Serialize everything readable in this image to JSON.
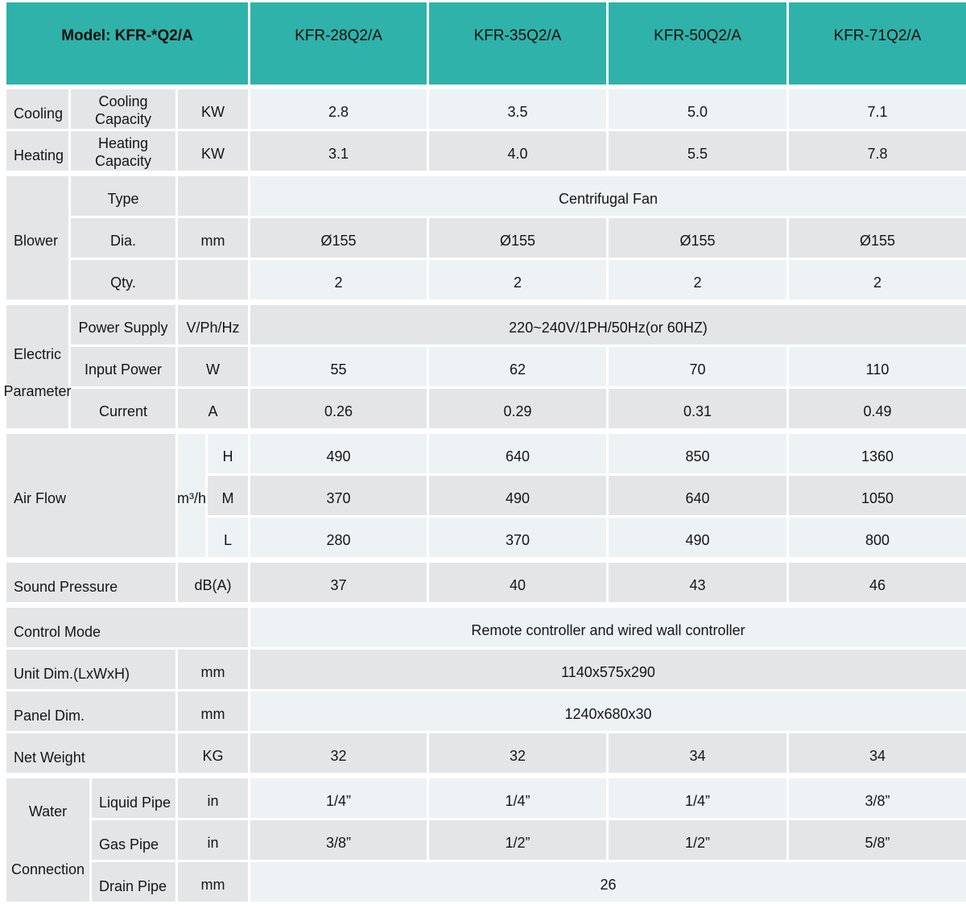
{
  "colors": {
    "header_bg": "#2FB2A9",
    "gray_cell": "#E4E5E6",
    "light_cell": "#EDF2F5",
    "text": "#151515"
  },
  "header": {
    "model": "Model: KFR-*Q2/A",
    "models": [
      "KFR-28Q2/A",
      "KFR-35Q2/A",
      "KFR-50Q2/A",
      "KFR-71Q2/A"
    ]
  },
  "cooling": {
    "group": "Cooling",
    "label": "Cooling Capacity",
    "unit": "KW",
    "values": [
      "2.8",
      "3.5",
      "5.0",
      "7.1"
    ]
  },
  "heating": {
    "group": "Heating",
    "label": "Heating Capacity",
    "unit": "KW",
    "values": [
      "3.1",
      "4.0",
      "5.5",
      "7.8"
    ]
  },
  "blower": {
    "group": "Blower",
    "type": {
      "label": "Type",
      "value": "Centrifugal Fan"
    },
    "dia": {
      "label": "Dia.",
      "unit": "mm",
      "values": [
        "Ø155",
        "Ø155",
        "Ø155",
        "Ø155"
      ]
    },
    "qty": {
      "label": "Qty.",
      "values": [
        "2",
        "2",
        "2",
        "2"
      ]
    }
  },
  "electric": {
    "group": "Electric Parameter",
    "power_supply": {
      "label": "Power Supply",
      "unit": "V/Ph/Hz",
      "value": "220~240V/1PH/50Hz(or 60HZ)"
    },
    "input_power": {
      "label": "Input Power",
      "unit": "W",
      "values": [
        "55",
        "62",
        "70",
        "110"
      ]
    },
    "current": {
      "label": "Current",
      "unit": "A",
      "values": [
        "0.26",
        "0.29",
        "0.31",
        "0.49"
      ]
    }
  },
  "air_flow": {
    "group": "Air Flow",
    "unit": "m³/h",
    "high": {
      "label": "H",
      "values": [
        "490",
        "640",
        "850",
        "1360"
      ]
    },
    "medium": {
      "label": "M",
      "values": [
        "370",
        "490",
        "640",
        "1050"
      ]
    },
    "low": {
      "label": "L",
      "values": [
        "280",
        "370",
        "490",
        "800"
      ]
    }
  },
  "sound_pressure": {
    "label": "Sound Pressure",
    "unit": "dB(A)",
    "values": [
      "37",
      "40",
      "43",
      "46"
    ]
  },
  "control_mode": {
    "label": "Control Mode",
    "value": "Remote controller and wired wall controller"
  },
  "unit_dim": {
    "label": "Unit Dim.(LxWxH)",
    "unit": "mm",
    "value": "1140x575x290"
  },
  "panel_dim": {
    "label": "Panel Dim.",
    "unit": "mm",
    "value": "1240x680x30"
  },
  "net_weight": {
    "label": "Net Weight",
    "unit": "KG",
    "values": [
      "32",
      "32",
      "34",
      "34"
    ]
  },
  "water": {
    "group": "Water Connection",
    "liquid": {
      "label": "Liquid Pipe",
      "unit": "in",
      "values": [
        "1/4”",
        "1/4”",
        "1/4”",
        "3/8”"
      ]
    },
    "gas": {
      "label": "Gas Pipe",
      "unit": "in",
      "values": [
        "3/8”",
        "1/2”",
        "1/2”",
        "5/8”"
      ]
    },
    "drain": {
      "label": "Drain Pipe",
      "unit": "mm",
      "value": "26"
    }
  }
}
